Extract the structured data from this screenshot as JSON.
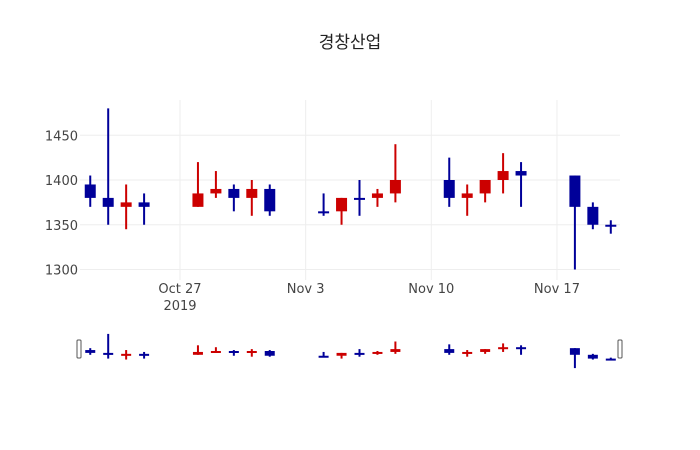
{
  "chart_data": {
    "type": "candlestick",
    "title": "경창산업",
    "xlabel": "",
    "ylabel": "",
    "ylim": [
      1295,
      1485
    ],
    "y_ticks": [
      1300,
      1350,
      1400,
      1450
    ],
    "x_ticks": [
      {
        "date": "2019-10-27",
        "label": "Oct 27",
        "sublabel": "2019"
      },
      {
        "date": "2019-11-03",
        "label": "Nov 3",
        "sublabel": ""
      },
      {
        "date": "2019-11-10",
        "label": "Nov 10",
        "sublabel": ""
      },
      {
        "date": "2019-11-17",
        "label": "Nov 17",
        "sublabel": ""
      }
    ],
    "colors": {
      "increasing": "#cc0000",
      "decreasing": "#000099"
    },
    "grid": true,
    "rangeslider": true,
    "x": [
      "2019-10-22",
      "2019-10-23",
      "2019-10-24",
      "2019-10-25",
      "2019-10-28",
      "2019-10-29",
      "2019-10-30",
      "2019-10-31",
      "2019-11-01",
      "2019-11-04",
      "2019-11-05",
      "2019-11-06",
      "2019-11-07",
      "2019-11-08",
      "2019-11-11",
      "2019-11-12",
      "2019-11-13",
      "2019-11-14",
      "2019-11-15",
      "2019-11-18",
      "2019-11-19",
      "2019-11-20"
    ],
    "open": [
      1395,
      1380,
      1370,
      1375,
      1370,
      1385,
      1390,
      1380,
      1390,
      1365,
      1365,
      1380,
      1380,
      1385,
      1400,
      1380,
      1385,
      1400,
      1410,
      1405,
      1370,
      1350
    ],
    "high": [
      1405,
      1480,
      1395,
      1385,
      1420,
      1410,
      1395,
      1400,
      1395,
      1385,
      1380,
      1400,
      1390,
      1440,
      1425,
      1395,
      1400,
      1430,
      1420,
      1405,
      1375,
      1355
    ],
    "low": [
      1370,
      1350,
      1345,
      1350,
      1370,
      1380,
      1365,
      1360,
      1360,
      1360,
      1350,
      1360,
      1370,
      1375,
      1370,
      1360,
      1375,
      1385,
      1370,
      1300,
      1345,
      1340
    ],
    "close": [
      1380,
      1370,
      1375,
      1370,
      1385,
      1390,
      1380,
      1390,
      1365,
      1365,
      1380,
      1380,
      1385,
      1400,
      1380,
      1385,
      1400,
      1410,
      1405,
      1370,
      1350,
      1350
    ]
  }
}
